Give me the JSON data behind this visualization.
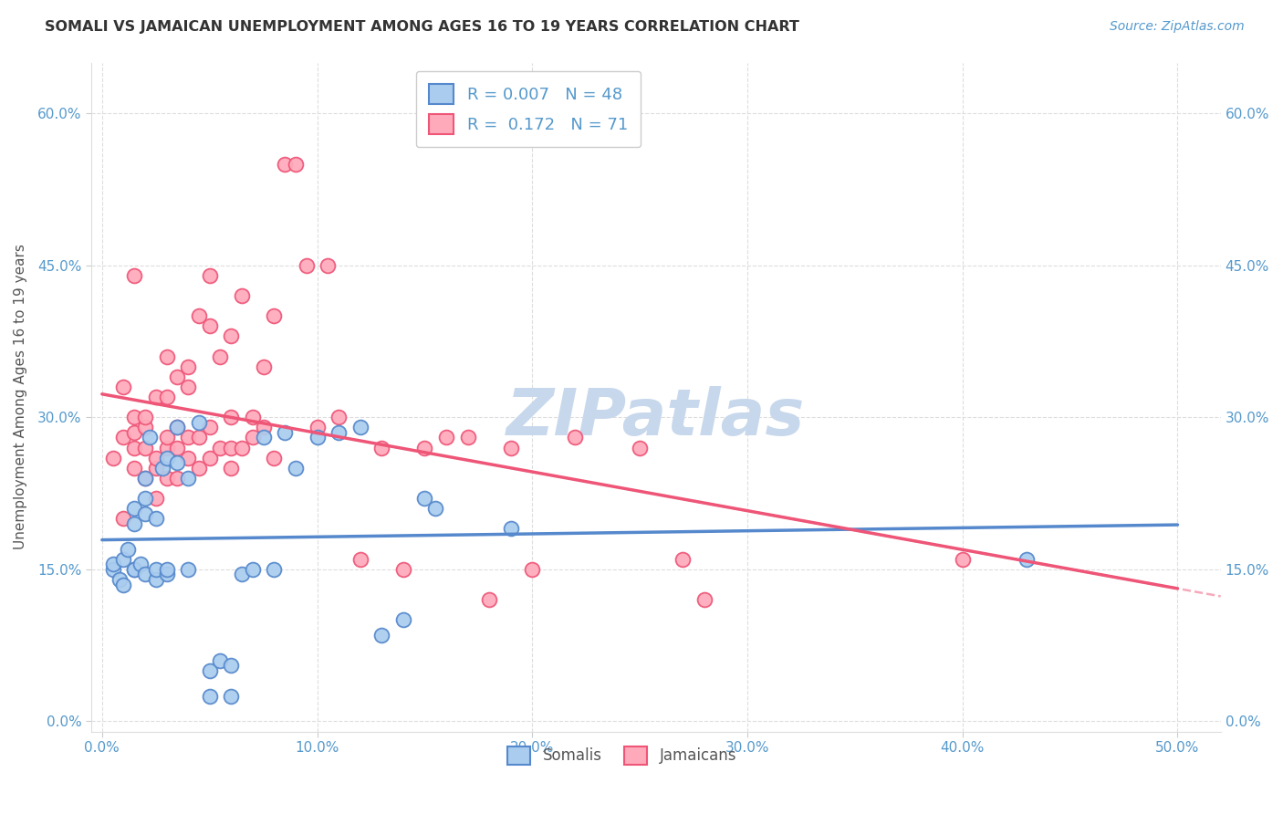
{
  "title": "SOMALI VS JAMAICAN UNEMPLOYMENT AMONG AGES 16 TO 19 YEARS CORRELATION CHART",
  "source": "Source: ZipAtlas.com",
  "ylabel": "Unemployment Among Ages 16 to 19 years",
  "xlabel_ticks": [
    "0.0%",
    "10.0%",
    "20.0%",
    "30.0%",
    "40.0%",
    "50.0%"
  ],
  "xlabel_vals": [
    0,
    10,
    20,
    30,
    40,
    50
  ],
  "ylabel_ticks": [
    "0.0%",
    "15.0%",
    "30.0%",
    "45.0%",
    "60.0%"
  ],
  "ylabel_vals": [
    0,
    15,
    30,
    45,
    60
  ],
  "xlim": [
    -0.5,
    52
  ],
  "ylim": [
    -1,
    65
  ],
  "somali_color": "#5588CC",
  "somali_face": "#AACCEE",
  "jamaican_color": "#EE5577",
  "jamaican_face": "#FFAABB",
  "somali_R": 0.007,
  "somali_N": 48,
  "jamaican_R": 0.172,
  "jamaican_N": 71,
  "watermark": "ZIPatlas",
  "watermark_color": "#C8D8EC",
  "legend_border_color": "#CCCCCC",
  "grid_color": "#DDDDDD",
  "title_color": "#333333",
  "axis_label_color": "#5599CC",
  "somali_x": [
    0.5,
    0.5,
    0.8,
    1.0,
    1.0,
    1.2,
    1.5,
    1.5,
    1.5,
    1.5,
    1.8,
    2.0,
    2.0,
    2.0,
    2.0,
    2.2,
    2.5,
    2.5,
    2.5,
    2.8,
    3.0,
    3.0,
    3.0,
    3.5,
    3.5,
    4.0,
    4.0,
    4.5,
    5.0,
    5.0,
    5.5,
    6.0,
    6.0,
    6.5,
    7.0,
    7.5,
    8.0,
    8.5,
    9.0,
    10.0,
    11.0,
    12.0,
    13.0,
    14.0,
    15.0,
    15.5,
    19.0,
    43.0
  ],
  "somali_y": [
    15.0,
    15.5,
    14.0,
    13.5,
    16.0,
    17.0,
    19.5,
    21.0,
    15.0,
    15.0,
    15.5,
    14.5,
    20.5,
    22.0,
    24.0,
    28.0,
    14.0,
    15.0,
    20.0,
    25.0,
    14.5,
    15.0,
    26.0,
    25.5,
    29.0,
    15.0,
    24.0,
    29.5,
    2.5,
    5.0,
    6.0,
    2.5,
    5.5,
    14.5,
    15.0,
    28.0,
    15.0,
    28.5,
    25.0,
    28.0,
    28.5,
    29.0,
    8.5,
    10.0,
    22.0,
    21.0,
    19.0,
    16.0
  ],
  "jamaican_x": [
    0.5,
    1.0,
    1.0,
    1.0,
    1.5,
    1.5,
    1.5,
    1.5,
    1.5,
    2.0,
    2.0,
    2.0,
    2.0,
    2.5,
    2.5,
    2.5,
    2.5,
    3.0,
    3.0,
    3.0,
    3.0,
    3.0,
    3.5,
    3.5,
    3.5,
    3.5,
    4.0,
    4.0,
    4.0,
    4.0,
    4.5,
    4.5,
    4.5,
    5.0,
    5.0,
    5.0,
    5.0,
    5.5,
    5.5,
    6.0,
    6.0,
    6.0,
    6.0,
    6.5,
    6.5,
    7.0,
    7.0,
    7.5,
    7.5,
    8.0,
    8.0,
    8.5,
    9.0,
    9.5,
    10.0,
    10.5,
    11.0,
    12.0,
    13.0,
    14.0,
    15.0,
    16.0,
    17.0,
    18.0,
    19.0,
    20.0,
    22.0,
    25.0,
    27.0,
    28.0,
    40.0
  ],
  "jamaican_y": [
    26.0,
    20.0,
    28.0,
    33.0,
    25.0,
    27.0,
    28.5,
    30.0,
    44.0,
    27.0,
    29.0,
    24.0,
    30.0,
    22.0,
    25.0,
    26.0,
    32.0,
    24.0,
    27.0,
    28.0,
    32.0,
    36.0,
    24.0,
    27.0,
    29.0,
    34.0,
    26.0,
    28.0,
    33.0,
    35.0,
    25.0,
    28.0,
    40.0,
    26.0,
    29.0,
    39.0,
    44.0,
    27.0,
    36.0,
    25.0,
    27.0,
    30.0,
    38.0,
    27.0,
    42.0,
    28.0,
    30.0,
    29.0,
    35.0,
    26.0,
    40.0,
    55.0,
    55.0,
    45.0,
    29.0,
    45.0,
    30.0,
    16.0,
    27.0,
    15.0,
    27.0,
    28.0,
    28.0,
    12.0,
    27.0,
    15.0,
    28.0,
    27.0,
    16.0,
    12.0,
    16.0
  ]
}
